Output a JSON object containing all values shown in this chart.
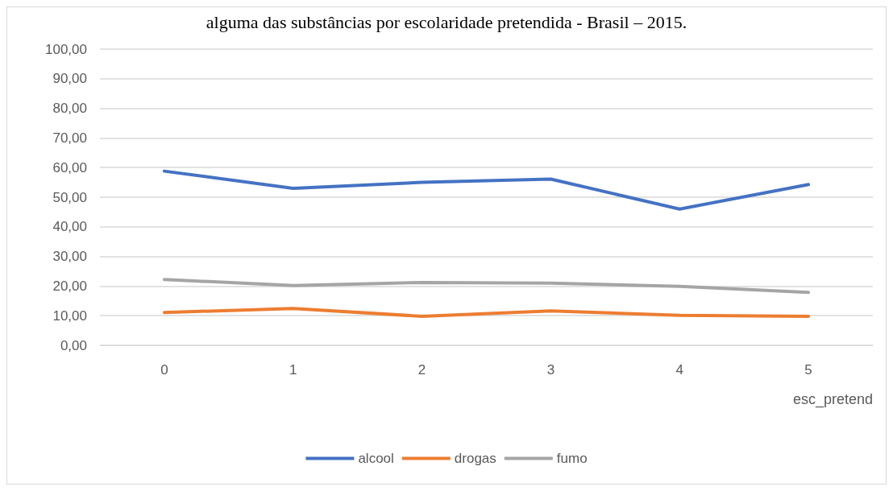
{
  "chart_data": {
    "type": "line",
    "title": "alguma das substâncias por escolaridade pretendida - Brasil – 2015.",
    "xlabel": "esc_pretend",
    "categories": [
      "0",
      "1",
      "2",
      "3",
      "4",
      "5"
    ],
    "series": [
      {
        "name": "alcool",
        "color": "#4472c4",
        "values": [
          58.8,
          53.0,
          55.0,
          56.1,
          46.0,
          54.3
        ]
      },
      {
        "name": "drogas",
        "color": "#ed7d31",
        "values": [
          11.1,
          12.4,
          9.8,
          11.6,
          10.1,
          9.8
        ]
      },
      {
        "name": "fumo",
        "color": "#a5a5a5",
        "values": [
          22.2,
          20.2,
          21.2,
          21.0,
          19.9,
          17.9
        ]
      }
    ],
    "ylim": [
      0,
      100
    ],
    "yticks": [
      {
        "value": 0,
        "label": "0,00"
      },
      {
        "value": 10,
        "label": "10,00"
      },
      {
        "value": 20,
        "label": "20,00"
      },
      {
        "value": 30,
        "label": "30,00"
      },
      {
        "value": 40,
        "label": "40,00"
      },
      {
        "value": 50,
        "label": "50,00"
      },
      {
        "value": 60,
        "label": "60,00"
      },
      {
        "value": 70,
        "label": "70,00"
      },
      {
        "value": 80,
        "label": "80,00"
      },
      {
        "value": 90,
        "label": "90,00"
      },
      {
        "value": 100,
        "label": "100,00"
      }
    ],
    "grid": "y",
    "legend": "bottom",
    "marker": "none",
    "line_style": "solid"
  }
}
